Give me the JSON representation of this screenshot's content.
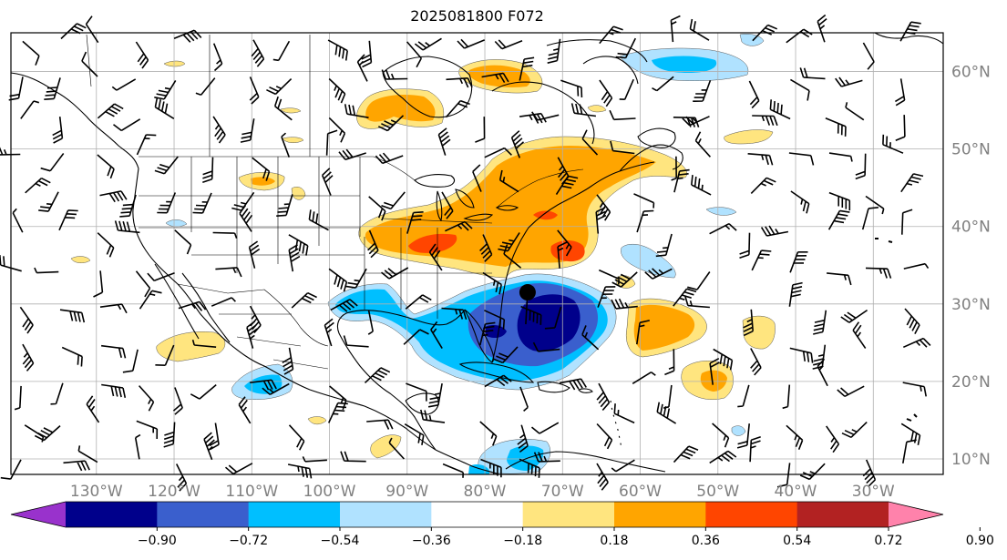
{
  "title": "2025081800 F072",
  "map": {
    "lat_labels": [
      "60°N",
      "50°N",
      "40°N",
      "30°N",
      "20°N",
      "10°N"
    ],
    "lon_labels": [
      "130°W",
      "120°W",
      "110°W",
      "100°W",
      "90°W",
      "80°W",
      "70°W",
      "60°W",
      "50°W",
      "40°W",
      "30°W"
    ],
    "extent": {
      "lon_min": -141,
      "lon_max": -21,
      "lat_min": 8,
      "lat_max": 65
    },
    "grid": true,
    "marker": {
      "name": "black-dot",
      "lon": -74.5,
      "lat": 31.5
    }
  },
  "colorbar": {
    "ticks": [
      "−0.90",
      "−0.72",
      "−0.54",
      "−0.36",
      "−0.18",
      "0.18",
      "0.36",
      "0.54",
      "0.72",
      "0.90"
    ],
    "colors": [
      "#9932cc",
      "#00008b",
      "#3a5fcd",
      "#00bfff",
      "#b0e2ff",
      "#ffffff",
      "#ffe57f",
      "#ffa500",
      "#ff4500",
      "#b22222",
      "#ff82ab"
    ],
    "extend": "both"
  },
  "colors": {
    "grid": "#b0b0b0",
    "coast": "#000000",
    "label": "#808080"
  }
}
